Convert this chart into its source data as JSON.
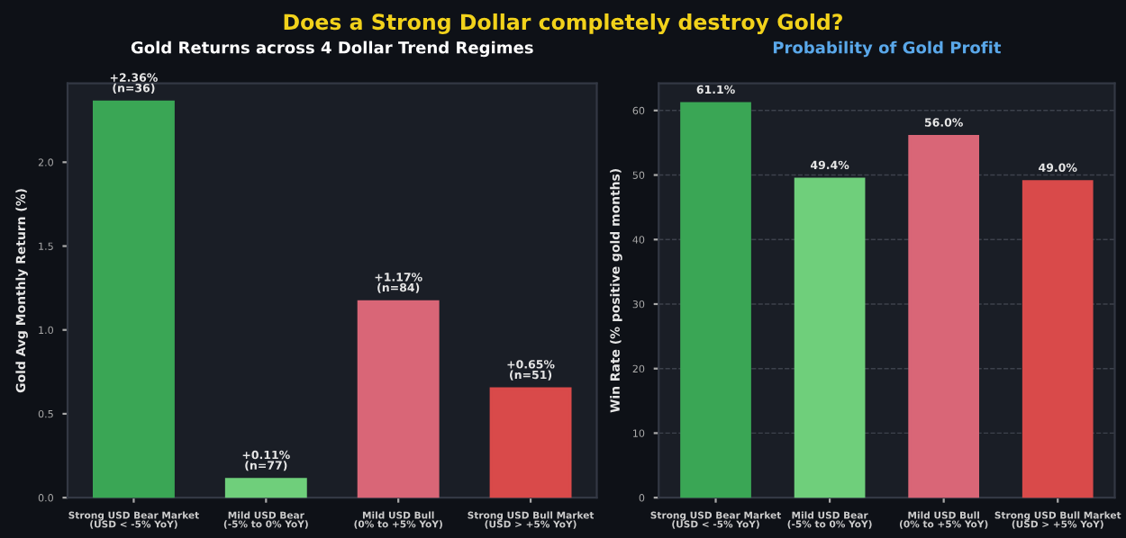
{
  "chart_data": [
    {
      "type": "bar",
      "annotations": [
        "Does a Strong Dollar completely destroy Gold?"
      ],
      "title": "Gold Returns across 4 Dollar Trend Regimes",
      "ylabel": "Gold Avg Monthly Return (%)",
      "categories": [
        "Strong USD Bear Market\n(USD < -5% YoY)",
        "Mild USD Bear\n(-5% to 0% YoY)",
        "Mild USD Bull\n(0% to +5% YoY)",
        "Strong USD Bull Market\n(USD > +5% YoY)"
      ],
      "values": [
        2.36,
        0.11,
        1.17,
        0.65
      ],
      "colors": [
        "#3aa655",
        "#6fcf7b",
        "#d96677",
        "#d94a4a"
      ],
      "value_labels": [
        "+2.36%\n(n=36)",
        "+0.11%\n(n=77)",
        "+1.17%\n(n=84)",
        "+0.65%\n(n=51)"
      ],
      "ylim": [
        0,
        2.47
      ],
      "yticks": [
        {
          "value": 0,
          "label": "0.0"
        },
        0.5,
        {
          "value": 1,
          "label": "1.0"
        },
        1.5,
        {
          "value": 2,
          "label": "2.0"
        }
      ],
      "grid": false
    },
    {
      "type": "bar",
      "title": "Probability of Gold Profit",
      "ylabel": "Win Rate (% positive gold months)",
      "categories": [
        "Strong USD Bear Market\n(USD < -5% YoY)",
        "Mild USD Bear\n(-5% to 0% YoY)",
        "Mild USD Bull\n(0% to +5% YoY)",
        "Strong USD Bull Market\n(USD > +5% YoY)"
      ],
      "values": [
        61.1,
        49.4,
        56.0,
        49.0
      ],
      "colors": [
        "#3aa655",
        "#6fcf7b",
        "#d96677",
        "#d94a4a"
      ],
      "value_labels": [
        "61.1%",
        "49.4%",
        "56.0%",
        "49.0%"
      ],
      "ylim": [
        0,
        64.2
      ],
      "yticks": [
        0,
        10,
        20,
        30,
        40,
        50,
        60
      ],
      "grid": "y"
    }
  ]
}
